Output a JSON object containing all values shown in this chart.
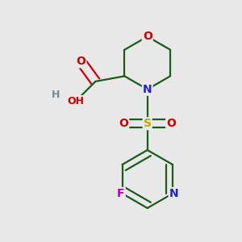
{
  "background_color": "#e8e8e8",
  "atom_colors": {
    "O": "#cc0000",
    "N": "#2222cc",
    "S": "#bbaa00",
    "F": "#bb00bb",
    "H": "#778899",
    "C": "#1a5c1a"
  },
  "bond_color": "#1a5c1a",
  "bond_width": 1.6,
  "font_size": 10,
  "figsize": [
    3.0,
    3.0
  ],
  "dpi": 100
}
